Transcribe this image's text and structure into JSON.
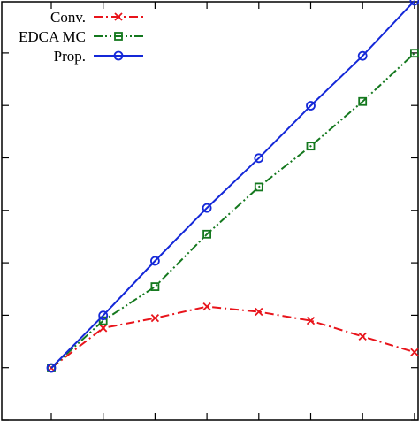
{
  "chart_data": {
    "type": "line",
    "title": "",
    "xlabel": "",
    "ylabel": "",
    "x": [
      1,
      2,
      3,
      4,
      5,
      6,
      7,
      8
    ],
    "xlim": [
      0,
      8
    ],
    "ylim": [
      0,
      8
    ],
    "grid": false,
    "legend_position": "top-left",
    "series": [
      {
        "name": "Conv.",
        "color": "#e8141b",
        "marker": "cross",
        "line_style": "dash-dot",
        "values": [
          1.0,
          1.76,
          1.95,
          2.17,
          2.07,
          1.9,
          1.6,
          1.3
        ]
      },
      {
        "name": "EDCA MC",
        "color": "#14781e",
        "marker": "square",
        "line_style": "dash-dot-dot",
        "values": [
          1.0,
          1.9,
          2.55,
          3.55,
          4.45,
          5.23,
          6.08,
          7.0
        ]
      },
      {
        "name": "Prop.",
        "color": "#1428d8",
        "marker": "circle",
        "line_style": "solid",
        "values": [
          1.0,
          2.0,
          3.04,
          4.05,
          5.0,
          6.0,
          6.95,
          8.0
        ]
      }
    ]
  }
}
